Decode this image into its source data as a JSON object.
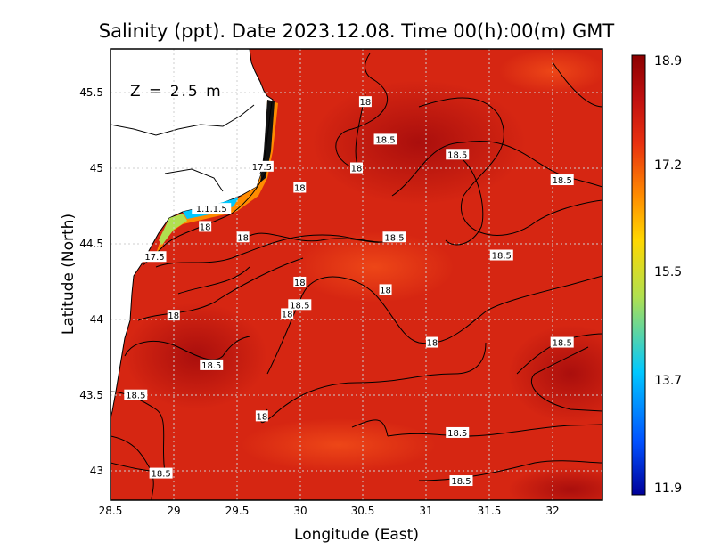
{
  "chart_data": {
    "type": "heatmap",
    "title": "Salinity (ppt). Date 2023.12.08. Time 00(h):00(m) GMT",
    "xlabel": "Longitude (East)",
    "ylabel": "Latitude (North)",
    "xlim": [
      28.5,
      32.4
    ],
    "ylim": [
      42.8,
      45.8
    ],
    "x_ticks": [
      "28.5",
      "29",
      "29.5",
      "30",
      "30.5",
      "31",
      "31.5",
      "32"
    ],
    "y_ticks": [
      "43",
      "43.5",
      "44",
      "44.5",
      "45",
      "45.5"
    ],
    "grid": true,
    "depth_annotation": "Z = 2.5 m",
    "colorbar": {
      "min": 11.9,
      "max": 18.9,
      "ticks": [
        "18.9",
        "17.2",
        "15.5",
        "13.7",
        "11.9"
      ],
      "colors": [
        "#000099",
        "#0050ff",
        "#00c8ff",
        "#b0e050",
        "#ffd700",
        "#ff8c00",
        "#e83010",
        "#c01010",
        "#8c0000"
      ]
    },
    "contour_labels": [
      {
        "text": "18",
        "lon": 30.0,
        "lat": 44.88
      },
      {
        "text": "18",
        "lon": 30.45,
        "lat": 45.01
      },
      {
        "text": "18.5",
        "lon": 30.68,
        "lat": 45.2
      },
      {
        "text": "18",
        "lon": 30.52,
        "lat": 45.45
      },
      {
        "text": "18.5",
        "lon": 31.25,
        "lat": 45.1
      },
      {
        "text": "18.5",
        "lon": 32.08,
        "lat": 44.93
      },
      {
        "text": "18.5",
        "lon": 30.75,
        "lat": 44.55
      },
      {
        "text": "18.5",
        "lon": 31.6,
        "lat": 44.43
      },
      {
        "text": "18",
        "lon": 30.0,
        "lat": 44.25
      },
      {
        "text": "18",
        "lon": 30.68,
        "lat": 44.2
      },
      {
        "text": "18.5",
        "lon": 30.0,
        "lat": 44.1
      },
      {
        "text": "18",
        "lon": 29.9,
        "lat": 44.04
      },
      {
        "text": "18",
        "lon": 31.05,
        "lat": 43.85
      },
      {
        "text": "18.5",
        "lon": 32.08,
        "lat": 43.85
      },
      {
        "text": "18.5",
        "lon": 29.3,
        "lat": 43.7
      },
      {
        "text": "18.5",
        "lon": 28.7,
        "lat": 43.5
      },
      {
        "text": "18",
        "lon": 29.7,
        "lat": 43.36
      },
      {
        "text": "18.5",
        "lon": 31.25,
        "lat": 43.25
      },
      {
        "text": "18.5",
        "lon": 28.9,
        "lat": 42.98
      },
      {
        "text": "18.5",
        "lon": 31.28,
        "lat": 42.93
      },
      {
        "text": "17.5",
        "lon": 29.7,
        "lat": 45.02
      },
      {
        "text": "18",
        "lon": 29.25,
        "lat": 44.62
      },
      {
        "text": "18",
        "lon": 29.55,
        "lat": 44.55
      },
      {
        "text": "17.5",
        "lon": 28.85,
        "lat": 44.42
      },
      {
        "text": "1.1.1.5",
        "lon": 29.3,
        "lat": 44.74
      },
      {
        "text": "18",
        "lon": 29.0,
        "lat": 44.03
      }
    ]
  }
}
